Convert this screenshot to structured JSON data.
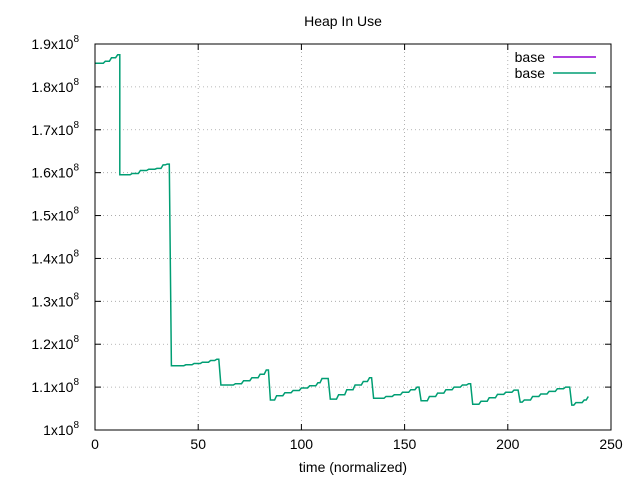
{
  "chart_data": {
    "type": "line",
    "title": "Heap In Use",
    "xlabel": "time (normalized)",
    "ylabel": "",
    "xlim": [
      0,
      250
    ],
    "ylim": [
      100000000,
      190000000
    ],
    "x_ticks": [
      0,
      50,
      100,
      150,
      200,
      250
    ],
    "x_tick_labels": [
      "0",
      "50",
      "100",
      "150",
      "200",
      "250"
    ],
    "y_ticks": [
      100000000,
      110000000,
      120000000,
      130000000,
      140000000,
      150000000,
      160000000,
      170000000,
      180000000,
      190000000
    ],
    "y_tick_mantissas": [
      "1x10",
      "1.1x10",
      "1.2x10",
      "1.3x10",
      "1.4x10",
      "1.5x10",
      "1.6x10",
      "1.7x10",
      "1.8x10",
      "1.9x10"
    ],
    "y_tick_exponent": "8",
    "grid": true,
    "legend_position": "top-right",
    "series": [
      {
        "name": "base",
        "color": "#9400d3",
        "x": [],
        "y": []
      },
      {
        "name": "base",
        "color": "#009e73",
        "x": [
          0,
          4,
          5,
          7,
          8,
          10,
          11,
          12,
          12,
          17,
          18,
          21,
          22,
          25,
          26,
          29,
          30,
          32,
          33,
          34,
          35,
          36,
          37,
          43,
          44,
          47,
          48,
          51,
          52,
          55,
          56,
          58,
          59,
          60,
          61,
          67,
          68,
          71,
          72,
          75,
          76,
          79,
          80,
          82,
          83,
          84,
          85,
          87,
          88,
          91,
          92,
          95,
          96,
          99,
          100,
          103,
          104,
          107,
          108,
          109,
          110,
          113,
          114,
          117,
          118,
          121,
          122,
          125,
          126,
          129,
          130,
          132,
          133,
          134,
          135,
          140,
          141,
          144,
          145,
          148,
          149,
          152,
          153,
          155,
          156,
          157,
          158,
          161,
          162,
          165,
          166,
          169,
          170,
          173,
          174,
          177,
          178,
          180,
          181,
          182,
          183,
          186,
          187,
          190,
          191,
          194,
          195,
          198,
          199,
          202,
          203,
          205,
          206,
          207,
          208,
          211,
          212,
          215,
          216,
          219,
          220,
          223,
          224,
          227,
          228,
          230,
          231,
          232,
          233,
          236,
          237,
          238,
          239
        ],
        "y": [
          185500000,
          185500000,
          186000000,
          186000000,
          186800000,
          186800000,
          187500000,
          187500000,
          159500000,
          159500000,
          159800000,
          159800000,
          160500000,
          160500000,
          160800000,
          160800000,
          161000000,
          161000000,
          161800000,
          161800000,
          162000000,
          162000000,
          115000000,
          115000000,
          115200000,
          115200000,
          115500000,
          115500000,
          115800000,
          115800000,
          116200000,
          116200000,
          116500000,
          116500000,
          110500000,
          110500000,
          110800000,
          110800000,
          111500000,
          111500000,
          112200000,
          112200000,
          113000000,
          113000000,
          114000000,
          114000000,
          107000000,
          107000000,
          108000000,
          108000000,
          108700000,
          108700000,
          109200000,
          109200000,
          109800000,
          109800000,
          110300000,
          110300000,
          111000000,
          111000000,
          112000000,
          112000000,
          107200000,
          107200000,
          108200000,
          108200000,
          109400000,
          109400000,
          110500000,
          110500000,
          111300000,
          111300000,
          112200000,
          112200000,
          107400000,
          107400000,
          107800000,
          107800000,
          108200000,
          108200000,
          108800000,
          108800000,
          109400000,
          109400000,
          110000000,
          110000000,
          106800000,
          106800000,
          107800000,
          107800000,
          108600000,
          108600000,
          109400000,
          109400000,
          110000000,
          110000000,
          110500000,
          110500000,
          110800000,
          110800000,
          106000000,
          106000000,
          106700000,
          106700000,
          107500000,
          107500000,
          108300000,
          108300000,
          108800000,
          108800000,
          109300000,
          109300000,
          106500000,
          106500000,
          107000000,
          107000000,
          107800000,
          107800000,
          108400000,
          108400000,
          109000000,
          109000000,
          109600000,
          109600000,
          110000000,
          110000000,
          105800000,
          105800000,
          106400000,
          106400000,
          107000000,
          107000000,
          107800000
        ]
      }
    ]
  }
}
